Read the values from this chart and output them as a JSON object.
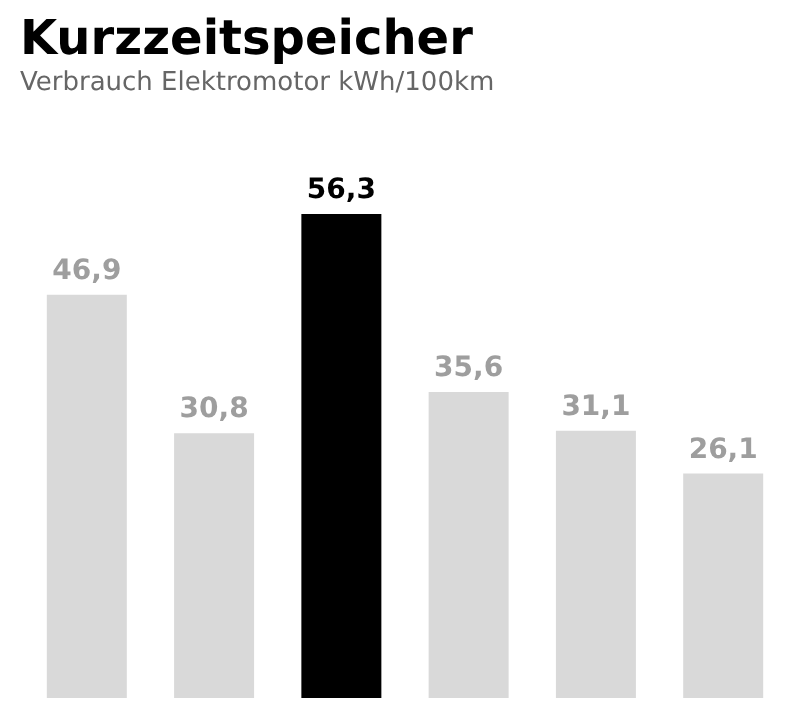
{
  "chart_data": {
    "type": "bar",
    "title": "Kurzzeitspeicher",
    "subtitle": "Verbrauch Elektromotor kWh/100km",
    "categories": [
      null,
      null,
      null,
      null,
      null,
      null
    ],
    "values": [
      46.9,
      30.8,
      56.3,
      35.6,
      31.1,
      26.1
    ],
    "value_labels": [
      "46,9",
      "30,8",
      "56,3",
      "35,6",
      "31,1",
      "26,1"
    ],
    "colors": [
      "#d9d9d9",
      "#d9d9d9",
      "#000000",
      "#d9d9d9",
      "#d9d9d9",
      "#d9d9d9"
    ]
  }
}
